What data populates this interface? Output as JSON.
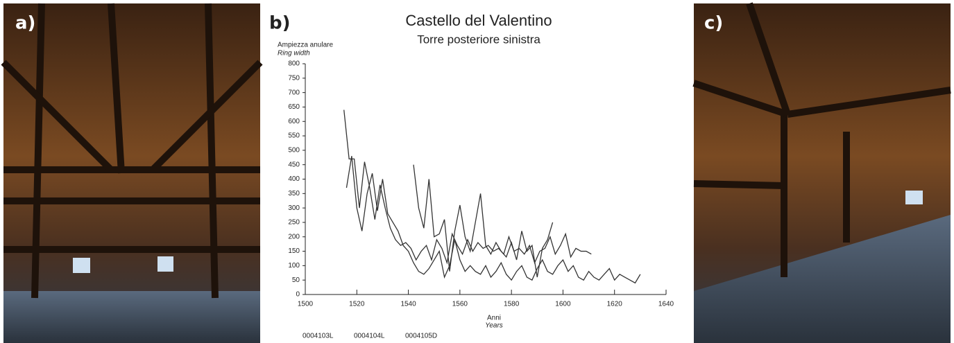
{
  "panels": {
    "a": "a)",
    "b": "b)",
    "c": "c)"
  },
  "chart_data": {
    "type": "line",
    "title": "Castello del Valentino",
    "subtitle": "Torre posteriore sinistra",
    "y_label": "Ampiezza anulare",
    "y_label_en": "Ring width",
    "x_label": "Anni",
    "x_label_en": "Years",
    "xlim": [
      1500,
      1640
    ],
    "xticks": [
      1500,
      1520,
      1540,
      1560,
      1580,
      1600,
      1620,
      1640
    ],
    "ylim": [
      0,
      800
    ],
    "yticks": [
      0,
      50,
      100,
      150,
      200,
      250,
      300,
      350,
      400,
      450,
      500,
      550,
      600,
      650,
      700,
      750,
      800
    ],
    "series": [
      {
        "name": "0004103L",
        "color": "#333333",
        "x": [
          1515,
          1517,
          1519,
          1521,
          1523,
          1525,
          1527,
          1529,
          1531,
          1533,
          1535,
          1537,
          1539,
          1541,
          1543,
          1545,
          1547,
          1549,
          1551,
          1553,
          1555,
          1557,
          1559,
          1561,
          1563,
          1565,
          1567,
          1569,
          1571,
          1573,
          1575,
          1577,
          1579,
          1581,
          1583,
          1585,
          1587,
          1589,
          1591,
          1593,
          1595,
          1597,
          1599,
          1601,
          1603,
          1605,
          1607,
          1609,
          1611
        ],
        "values": [
          640,
          470,
          470,
          300,
          460,
          370,
          260,
          380,
          300,
          230,
          190,
          170,
          180,
          160,
          120,
          150,
          170,
          120,
          190,
          160,
          110,
          210,
          170,
          140,
          190,
          150,
          180,
          160,
          170,
          150,
          160,
          140,
          200,
          150,
          160,
          140,
          170,
          110,
          150,
          160,
          200,
          140,
          170,
          210,
          130,
          160,
          150,
          150,
          140
        ]
      },
      {
        "name": "0004104L",
        "color": "#333333",
        "x": [
          1516,
          1518,
          1520,
          1522,
          1524,
          1526,
          1528,
          1530,
          1532,
          1534,
          1536,
          1538,
          1540,
          1542,
          1544,
          1546,
          1548,
          1550,
          1552,
          1554,
          1556,
          1558,
          1560,
          1562,
          1564,
          1566,
          1568,
          1570,
          1572,
          1574,
          1576,
          1578,
          1580,
          1582,
          1584,
          1586,
          1588,
          1590,
          1592,
          1594,
          1596,
          1598,
          1600,
          1602,
          1604,
          1606,
          1608,
          1610,
          1612,
          1614,
          1616,
          1618,
          1620,
          1622,
          1624,
          1626,
          1628,
          1630
        ],
        "values": [
          370,
          480,
          300,
          220,
          350,
          420,
          290,
          400,
          280,
          250,
          220,
          170,
          150,
          110,
          80,
          70,
          90,
          120,
          150,
          60,
          100,
          190,
          120,
          80,
          100,
          80,
          70,
          100,
          60,
          80,
          110,
          70,
          50,
          80,
          100,
          60,
          50,
          90,
          120,
          80,
          70,
          100,
          120,
          80,
          100,
          60,
          50,
          80,
          60,
          50,
          70,
          90,
          50,
          70,
          60,
          50,
          40,
          70
        ]
      },
      {
        "name": "0004105D",
        "color": "#333333",
        "x": [
          1542,
          1544,
          1546,
          1548,
          1550,
          1552,
          1554,
          1556,
          1558,
          1560,
          1562,
          1564,
          1566,
          1568,
          1570,
          1572,
          1574,
          1576,
          1578,
          1580,
          1582,
          1584,
          1586,
          1588,
          1590,
          1592,
          1594,
          1596
        ],
        "values": [
          450,
          300,
          230,
          400,
          200,
          210,
          260,
          80,
          220,
          310,
          200,
          150,
          250,
          350,
          170,
          140,
          180,
          150,
          130,
          180,
          120,
          220,
          150,
          170,
          60,
          160,
          190,
          250
        ]
      }
    ]
  }
}
